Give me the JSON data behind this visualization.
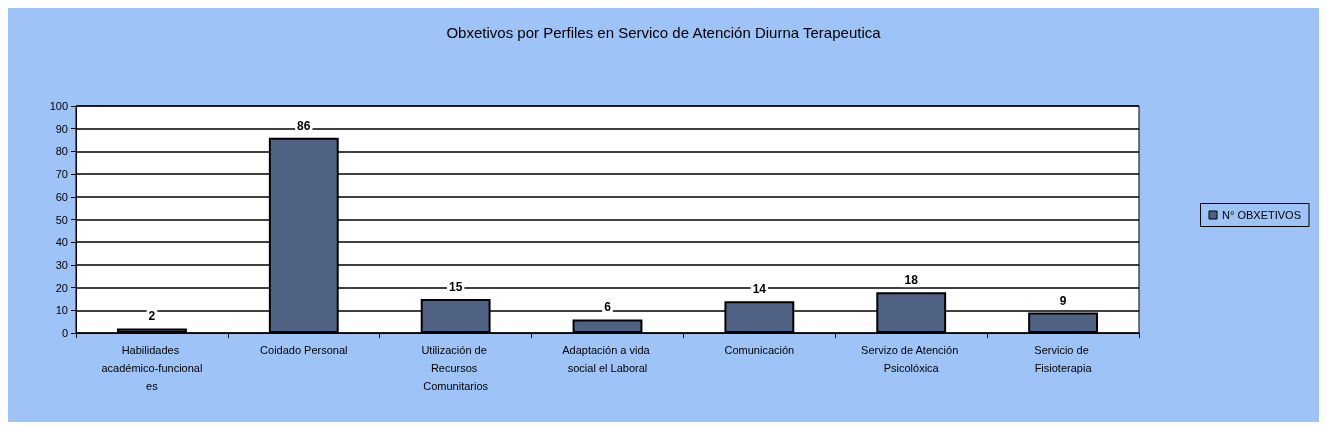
{
  "chart_data": {
    "type": "bar",
    "title": "Obxetivos por Perfiles en Servico de Atención Diurna Terapeutica",
    "categories": [
      "Habilidades académico-funcionales",
      "Coidado Personal",
      "Utilización de Recursos Comunitarios",
      "Adaptación a vida social el Laboral",
      "Comunicación",
      "Servizo de Atención Psicolóxica",
      "Servicio de Fisioterapia"
    ],
    "series": [
      {
        "name": "N° OBXETIVOS",
        "color": "#4f6283",
        "values": [
          2,
          86,
          15,
          6,
          14,
          18,
          9
        ]
      }
    ],
    "ylim": [
      0,
      100
    ],
    "yticks": [
      0,
      10,
      20,
      30,
      40,
      50,
      60,
      70,
      80,
      90,
      100
    ],
    "grid": "y",
    "legend": "right",
    "data_labels": true
  }
}
